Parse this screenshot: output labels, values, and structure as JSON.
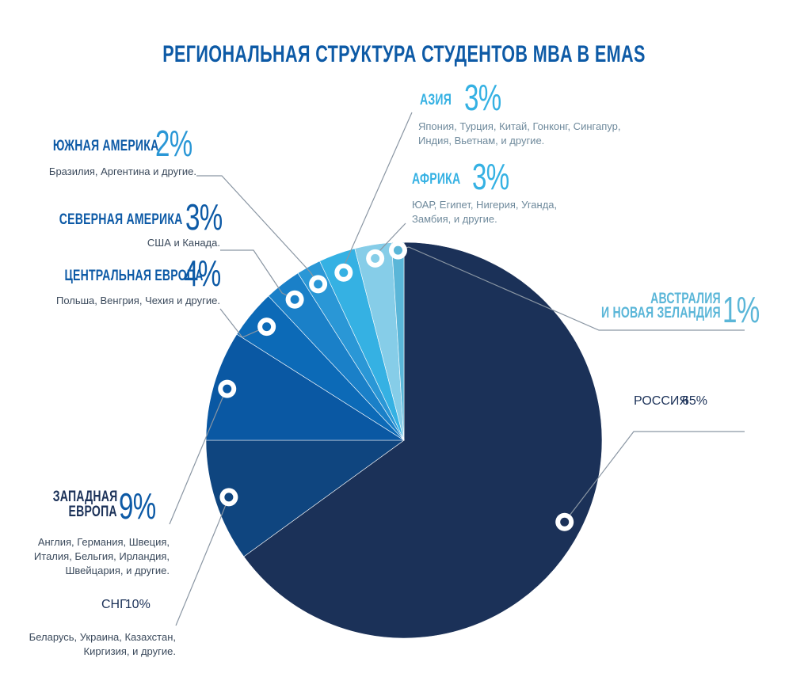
{
  "chart_data": {
    "type": "pie",
    "title": "РЕГИОНАЛЬНАЯ СТРУКТУРА СТУДЕНТОВ MBA В EMAS",
    "slices": [
      {
        "name": "РОССИЯ",
        "value": 65,
        "label": "65%",
        "color": "#1b3158",
        "description": ""
      },
      {
        "name": "СНГ",
        "value": 10,
        "label": "10%",
        "color": "#0f457f",
        "description": "Беларусь, Украина, Казахстан,\nКиргизия, и другие."
      },
      {
        "name": "ЗАПАДНАЯ ЕВРОПА",
        "value": 9,
        "label": "9%",
        "color": "#0a58a3",
        "description": "Англия, Германия, Швеция,\nИталия, Бельгия, Ирландия,\nШвейцария, и другие."
      },
      {
        "name": "ЦЕНТРАЛЬНАЯ ЕВРОПА",
        "value": 4,
        "label": "4%",
        "color": "#0c6ab7",
        "description": "Польша, Венгрия, Чехия и другие."
      },
      {
        "name": "СЕВЕРНАЯ АМЕРИКА",
        "value": 3,
        "label": "3%",
        "color": "#1a80c8",
        "description": "США и Канада."
      },
      {
        "name": "ЮЖНАЯ АМЕРИКА",
        "value": 2,
        "label": "2%",
        "color": "#2a97d6",
        "description": "Бразилия, Аргентина и другие."
      },
      {
        "name": "АЗИЯ",
        "value": 3,
        "label": "3%",
        "color": "#35b1e3",
        "description": "Япония, Турция, Китай,  Гонконг, Сингапур,\nИндия, Вьетнам, и другие."
      },
      {
        "name": "АФРИКА",
        "value": 3,
        "label": "3%",
        "color": "#86cde8",
        "description": "ЮАР, Египет, Нигерия, Уганда,\nЗамбия, и другие."
      },
      {
        "name": "АВСТРАЛИЯ И НОВАЯ ЗЕЛАНДИЯ",
        "value": 1,
        "label": "1%",
        "color": "#5ab6d8",
        "description": ""
      }
    ]
  },
  "labels": {
    "russia": {
      "name": "РОССИЯ",
      "pct": "65%"
    },
    "cis": {
      "name": "СНГ",
      "pct": "10%",
      "desc": "Беларусь, Украина, Казахстан,\nКиргизия, и другие."
    },
    "west": {
      "name_line1": "ЗАПАДНАЯ",
      "name_line2": "ЕВРОПА",
      "pct": "9%",
      "desc": "Англия, Германия, Швеция,\nИталия, Бельгия, Ирландия,\nШвейцария, и другие."
    },
    "central": {
      "name": "ЦЕНТРАЛЬНАЯ ЕВРОПА",
      "pct": "4%",
      "desc": "Польша, Венгрия, Чехия и другие."
    },
    "north": {
      "name": "СЕВЕРНАЯ АМЕРИКА",
      "pct": "3%",
      "desc": "США и Канада."
    },
    "south": {
      "name": "ЮЖНАЯ АМЕРИКА",
      "pct": "2%",
      "desc": "Бразилия, Аргентина и другие."
    },
    "asia": {
      "name": "АЗИЯ",
      "pct": "3%",
      "desc": "Япония, Турция, Китай,  Гонконг, Сингапур,\nИндия, Вьетнам, и другие."
    },
    "africa": {
      "name": "АФРИКА",
      "pct": "3%",
      "desc": "ЮАР, Египет, Нигерия, Уганда,\nЗамбия, и другие."
    },
    "australia": {
      "name_line1": "АВСТРАЛИЯ",
      "name_line2": "И НОВАЯ ЗЕЛАНДИЯ",
      "pct": "1%"
    }
  },
  "colors": {
    "title": "#0d5aa6",
    "dark_navy": "#1b3158",
    "mid_blue": "#0d5aa6",
    "light_blue": "#35b1e3",
    "pale_blue": "#5ab6d8",
    "leader_line": "#8a96a3"
  }
}
